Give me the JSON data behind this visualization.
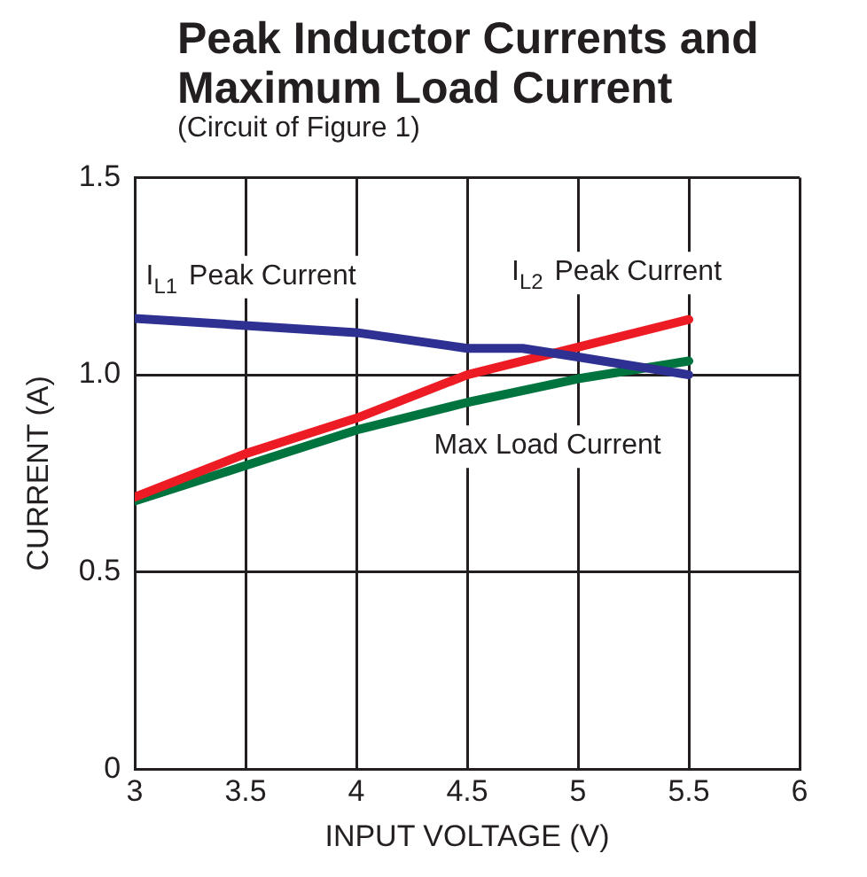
{
  "chart_data": {
    "type": "line",
    "title": "Peak Inductor Currents and Maximum Load Current",
    "subtitle": "(Circuit of Figure 1)",
    "xlabel": "INPUT VOLTAGE (V)",
    "ylabel": "CURRENT (A)",
    "xlim": [
      3,
      6
    ],
    "xticks": [
      3,
      3.5,
      4,
      4.5,
      5,
      5.5,
      6
    ],
    "ylim": [
      0,
      1.5
    ],
    "yticks": [
      0,
      0.5,
      {
        "value": 1,
        "label": "1.0"
      },
      1.5
    ],
    "grid": true,
    "legend": false,
    "marker": "none",
    "line_style": "solid",
    "series": [
      {
        "name": "I$_{L1}$ Peak Current",
        "color": "#2e3192",
        "x": [
          3,
          3.5,
          4,
          4.5,
          4.75,
          5,
          5.5
        ],
        "values": [
          1.143,
          1.125,
          1.107,
          1.067,
          1.067,
          1.045,
          1.0
        ]
      },
      {
        "name": "I$_{L2}$ Peak Current",
        "color": "#ed1c24",
        "x": [
          3,
          3.5,
          4,
          4.5,
          5,
          5.5
        ],
        "values": [
          0.69,
          0.8,
          0.89,
          1.0,
          1.07,
          1.14
        ]
      },
      {
        "name": "Max Load Current",
        "color": "#00743f",
        "x": [
          3,
          3.5,
          4,
          4.5,
          5,
          5.5
        ],
        "values": [
          0.68,
          0.77,
          0.86,
          0.93,
          0.99,
          1.035
        ]
      }
    ]
  }
}
